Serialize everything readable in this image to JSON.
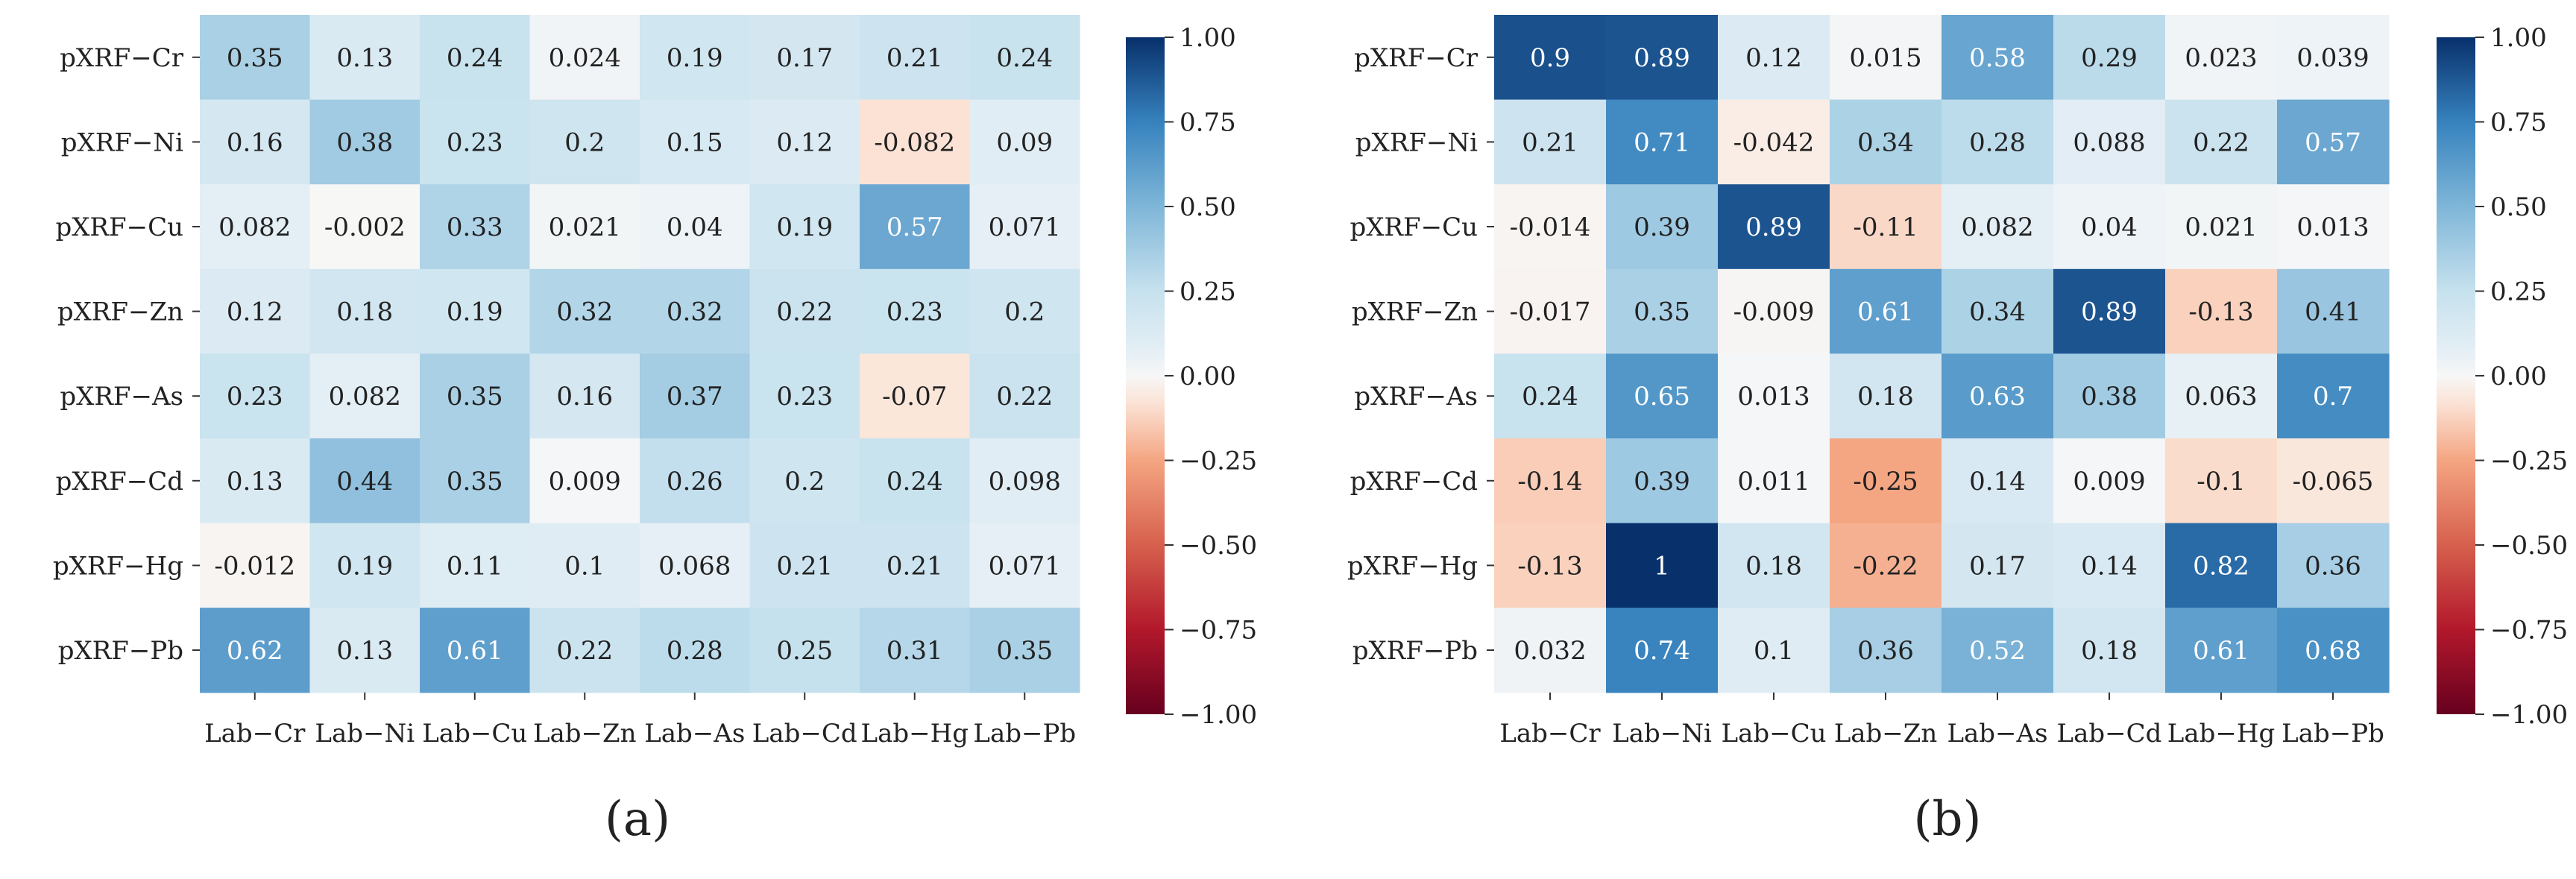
{
  "chart_data": [
    {
      "type": "heatmap",
      "panel_label": "(a)",
      "row_labels": [
        "pXRF−Cr",
        "pXRF−Ni",
        "pXRF−Cu",
        "pXRF−Zn",
        "pXRF−As",
        "pXRF−Cd",
        "pXRF−Hg",
        "pXRF−Pb"
      ],
      "col_labels": [
        "Lab−Cr",
        "Lab−Ni",
        "Lab−Cu",
        "Lab−Zn",
        "Lab−As",
        "Lab−Cd",
        "Lab−Hg",
        "Lab−Pb"
      ],
      "values": [
        [
          0.35,
          0.13,
          0.24,
          0.024,
          0.19,
          0.17,
          0.21,
          0.24
        ],
        [
          0.16,
          0.38,
          0.23,
          0.2,
          0.15,
          0.12,
          -0.082,
          0.09
        ],
        [
          0.082,
          -0.002,
          0.33,
          0.021,
          0.04,
          0.19,
          0.57,
          0.071
        ],
        [
          0.12,
          0.18,
          0.19,
          0.32,
          0.32,
          0.22,
          0.23,
          0.2
        ],
        [
          0.23,
          0.082,
          0.35,
          0.16,
          0.37,
          0.23,
          -0.07,
          0.22
        ],
        [
          0.13,
          0.44,
          0.35,
          0.009,
          0.26,
          0.2,
          0.24,
          0.098
        ],
        [
          -0.012,
          0.19,
          0.11,
          0.1,
          0.068,
          0.21,
          0.21,
          0.071
        ],
        [
          0.62,
          0.13,
          0.61,
          0.22,
          0.28,
          0.25,
          0.31,
          0.35
        ]
      ],
      "cell_text": [
        [
          "0.35",
          "0.13",
          "0.24",
          "0.024",
          "0.19",
          "0.17",
          "0.21",
          "0.24"
        ],
        [
          "0.16",
          "0.38",
          "0.23",
          "0.2",
          "0.15",
          "0.12",
          "-0.082",
          "0.09"
        ],
        [
          "0.082",
          "-0.002",
          "0.33",
          "0.021",
          "0.04",
          "0.19",
          "0.57",
          "0.071"
        ],
        [
          "0.12",
          "0.18",
          "0.19",
          "0.32",
          "0.32",
          "0.22",
          "0.23",
          "0.2"
        ],
        [
          "0.23",
          "0.082",
          "0.35",
          "0.16",
          "0.37",
          "0.23",
          "-0.07",
          "0.22"
        ],
        [
          "0.13",
          "0.44",
          "0.35",
          "0.009",
          "0.26",
          "0.2",
          "0.24",
          "0.098"
        ],
        [
          "-0.012",
          "0.19",
          "0.11",
          "0.1",
          "0.068",
          "0.21",
          "0.21",
          "0.071"
        ],
        [
          "0.62",
          "0.13",
          "0.61",
          "0.22",
          "0.28",
          "0.25",
          "0.31",
          "0.35"
        ]
      ],
      "colorbar": {
        "range": [
          -1.0,
          1.0
        ],
        "ticks": [
          "1.00",
          "0.75",
          "0.50",
          "0.25",
          "0.00",
          "−0.25",
          "−0.50",
          "−0.75",
          "−1.00"
        ],
        "tick_values": [
          1.0,
          0.75,
          0.5,
          0.25,
          0.0,
          -0.25,
          -0.5,
          -0.75,
          -1.0
        ],
        "colormap": "RdBu"
      }
    },
    {
      "type": "heatmap",
      "panel_label": "(b)",
      "row_labels": [
        "pXRF−Cr",
        "pXRF−Ni",
        "pXRF−Cu",
        "pXRF−Zn",
        "pXRF−As",
        "pXRF−Cd",
        "pXRF−Hg",
        "pXRF−Pb"
      ],
      "col_labels": [
        "Lab−Cr",
        "Lab−Ni",
        "Lab−Cu",
        "Lab−Zn",
        "Lab−As",
        "Lab−Cd",
        "Lab−Hg",
        "Lab−Pb"
      ],
      "values": [
        [
          0.9,
          0.89,
          0.12,
          0.015,
          0.58,
          0.29,
          0.023,
          0.039
        ],
        [
          0.21,
          0.71,
          -0.042,
          0.34,
          0.28,
          0.088,
          0.22,
          0.57
        ],
        [
          -0.014,
          0.39,
          0.89,
          -0.11,
          0.082,
          0.04,
          0.021,
          0.013
        ],
        [
          -0.017,
          0.35,
          -0.009,
          0.61,
          0.34,
          0.89,
          -0.13,
          0.41
        ],
        [
          0.24,
          0.65,
          0.013,
          0.18,
          0.63,
          0.38,
          0.063,
          0.7
        ],
        [
          -0.14,
          0.39,
          0.011,
          -0.25,
          0.14,
          0.009,
          -0.1,
          -0.065
        ],
        [
          -0.13,
          1.0,
          0.18,
          -0.22,
          0.17,
          0.14,
          0.82,
          0.36
        ],
        [
          0.032,
          0.74,
          0.1,
          0.36,
          0.52,
          0.18,
          0.61,
          0.68
        ]
      ],
      "cell_text": [
        [
          "0.9",
          "0.89",
          "0.12",
          "0.015",
          "0.58",
          "0.29",
          "0.023",
          "0.039"
        ],
        [
          "0.21",
          "0.71",
          "-0.042",
          "0.34",
          "0.28",
          "0.088",
          "0.22",
          "0.57"
        ],
        [
          "-0.014",
          "0.39",
          "0.89",
          "-0.11",
          "0.082",
          "0.04",
          "0.021",
          "0.013"
        ],
        [
          "-0.017",
          "0.35",
          "-0.009",
          "0.61",
          "0.34",
          "0.89",
          "-0.13",
          "0.41"
        ],
        [
          "0.24",
          "0.65",
          "0.013",
          "0.18",
          "0.63",
          "0.38",
          "0.063",
          "0.7"
        ],
        [
          "-0.14",
          "0.39",
          "0.011",
          "-0.25",
          "0.14",
          "0.009",
          "-0.1",
          "-0.065"
        ],
        [
          "-0.13",
          "1",
          "0.18",
          "-0.22",
          "0.17",
          "0.14",
          "0.82",
          "0.36"
        ],
        [
          "0.032",
          "0.74",
          "0.1",
          "0.36",
          "0.52",
          "0.18",
          "0.61",
          "0.68"
        ]
      ],
      "colorbar": {
        "range": [
          -1.0,
          1.0
        ],
        "ticks": [
          "1.00",
          "0.75",
          "0.50",
          "0.25",
          "0.00",
          "−0.25",
          "−0.50",
          "−0.75",
          "−1.00"
        ],
        "tick_values": [
          1.0,
          0.75,
          0.5,
          0.25,
          0.0,
          -0.25,
          -0.5,
          -0.75,
          -1.0
        ],
        "colormap": "RdBu"
      }
    }
  ],
  "colormap_stops": [
    {
      "v": -1.0,
      "c": "#67001f"
    },
    {
      "v": -0.75,
      "c": "#b2182b"
    },
    {
      "v": -0.5,
      "c": "#d6604d"
    },
    {
      "v": -0.25,
      "c": "#f4a582"
    },
    {
      "v": -0.08,
      "c": "#fbe3d6"
    },
    {
      "v": 0.0,
      "c": "#f7f7f7"
    },
    {
      "v": 0.08,
      "c": "#e3eef5"
    },
    {
      "v": 0.25,
      "c": "#c6e1ee"
    },
    {
      "v": 0.5,
      "c": "#7fb6d8"
    },
    {
      "v": 0.75,
      "c": "#3682be"
    },
    {
      "v": 1.0,
      "c": "#08306b"
    }
  ]
}
